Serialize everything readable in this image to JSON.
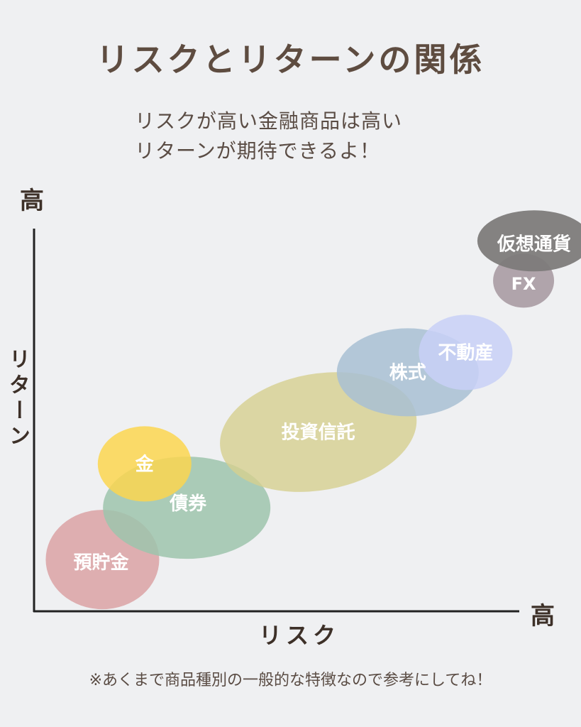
{
  "title": "リスクとリターンの関係",
  "subtitle": [
    "リスクが高い金融商品は高い",
    "リターンが期待できるよ！"
  ],
  "axis": {
    "y_high": "高",
    "x_high": "高",
    "ylabel": "リターン",
    "xlabel": "リスク"
  },
  "note": "※あくまで商品種別の一般的な特徴なので参考にしてね！",
  "chart_data": {
    "type": "scatter",
    "xlabel": "リスク",
    "ylabel": "リターン",
    "grid": false,
    "points": [
      {
        "label": "預貯金",
        "risk": 1.3,
        "return": 1.3,
        "color": "#dca6a9",
        "opacity": 0.9
      },
      {
        "label": "債券",
        "risk": 2.9,
        "return": 2.6,
        "color": "#9ec4ad",
        "opacity": 0.85
      },
      {
        "label": "金",
        "risk": 2.1,
        "return": 3.7,
        "color": "#fbd650",
        "opacity": 0.85
      },
      {
        "label": "投資信託",
        "risk": 5.4,
        "return": 4.5,
        "color": "#d6cf8e",
        "opacity": 0.8
      },
      {
        "label": "株式",
        "risk": 7.1,
        "return": 6.0,
        "color": "#a8bfd3",
        "opacity": 0.85
      },
      {
        "label": "不動産",
        "risk": 8.2,
        "return": 6.5,
        "color": "#c8d0f7",
        "opacity": 0.85
      },
      {
        "label": "FX",
        "risk": 9.3,
        "return": 8.3,
        "color": "#a89ba3",
        "opacity": 0.9
      },
      {
        "label": "仮想通貨",
        "risk": 9.5,
        "return": 9.3,
        "color": "#7d7b7a",
        "opacity": 0.95
      }
    ]
  }
}
